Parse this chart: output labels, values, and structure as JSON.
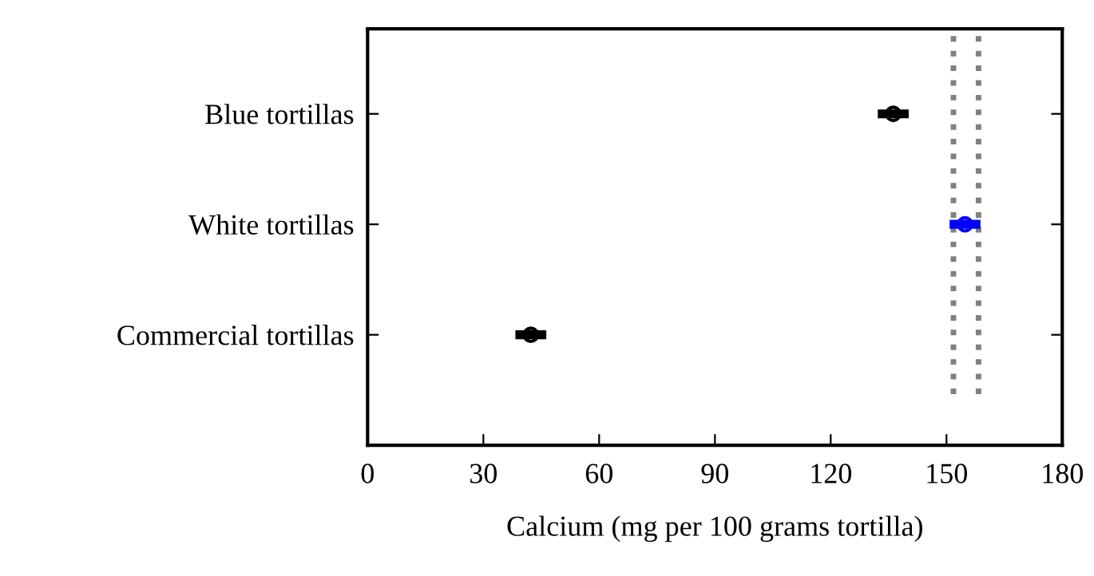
{
  "chart_data": {
    "type": "scatter",
    "orientation": "horizontal",
    "xlabel": "Calcium (mg per 100 grams tortilla)",
    "categories": [
      "Blue tortillas",
      "White tortillas",
      "Commercial tortillas"
    ],
    "values": [
      136.2,
      154.8,
      42.3
    ],
    "errors": [
      4,
      4,
      4
    ],
    "colors": [
      "#000000",
      "#0000ff",
      "#000000"
    ],
    "marker": "circle",
    "xlim": [
      0,
      180
    ],
    "xticks": [
      0,
      30,
      60,
      90,
      120,
      150,
      180
    ],
    "ref_lines": [
      {
        "axis": "x",
        "value": 151.8,
        "color": "#808080",
        "line_style": "dotted"
      },
      {
        "axis": "x",
        "value": 158.3,
        "color": "#808080",
        "line_style": "dotted"
      }
    ],
    "grid": false,
    "legend": false
  }
}
